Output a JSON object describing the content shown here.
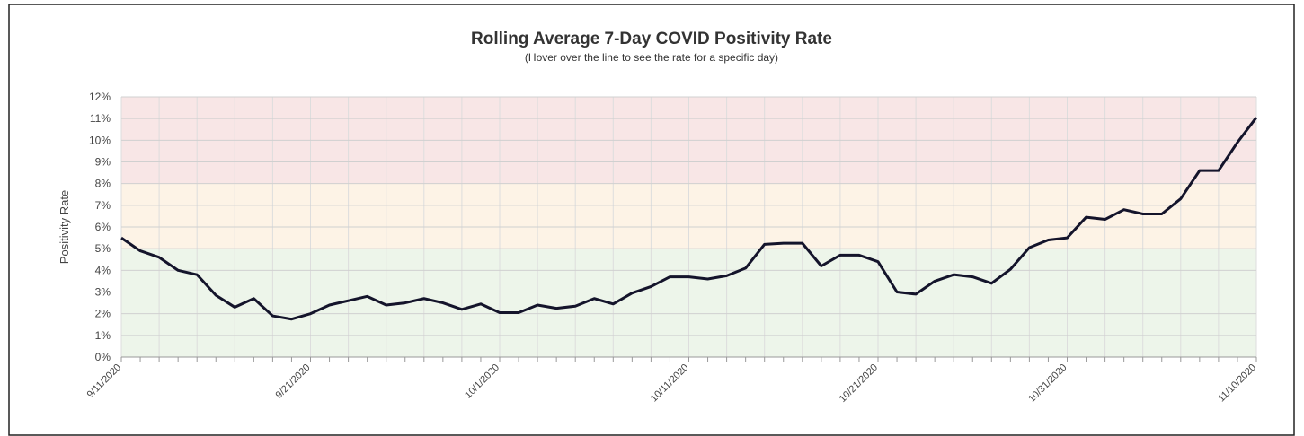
{
  "chart_data": {
    "type": "line",
    "title": "Rolling Average 7-Day COVID Positivity Rate",
    "subtitle": "(Hover over the line to see the rate for a specific day)",
    "y_label": "Positivity Rate",
    "categories": [
      "9/11/2020",
      null,
      null,
      null,
      null,
      null,
      null,
      null,
      null,
      null,
      "9/21/2020",
      null,
      null,
      null,
      null,
      null,
      null,
      null,
      null,
      null,
      "10/1/2020",
      null,
      null,
      null,
      null,
      null,
      null,
      null,
      null,
      null,
      "10/11/2020",
      null,
      null,
      null,
      null,
      null,
      null,
      null,
      null,
      null,
      "10/21/2020",
      null,
      null,
      null,
      null,
      null,
      null,
      null,
      null,
      null,
      "10/31/2020",
      null,
      null,
      null,
      null,
      null,
      null,
      null,
      null,
      null,
      "11/10/2020"
    ],
    "series": [
      {
        "name": "Positivity Rate",
        "color": "#14142b",
        "values": [
          5.5,
          4.9,
          4.6,
          4.0,
          3.8,
          2.85,
          2.3,
          2.7,
          1.9,
          1.75,
          2.0,
          2.4,
          2.6,
          2.8,
          2.4,
          2.5,
          2.7,
          2.5,
          2.2,
          2.45,
          2.05,
          2.05,
          2.4,
          2.25,
          2.35,
          2.7,
          2.45,
          2.95,
          3.25,
          3.7,
          3.7,
          3.6,
          3.75,
          4.1,
          5.2,
          5.25,
          5.25,
          4.2,
          4.7,
          4.7,
          4.4,
          3.0,
          2.9,
          3.5,
          3.8,
          3.7,
          3.4,
          4.05,
          5.05,
          5.4,
          5.5,
          6.45,
          6.35,
          6.8,
          6.6,
          6.6,
          7.3,
          8.6,
          8.6,
          9.9,
          11.05
        ]
      }
    ],
    "ylim": [
      0,
      12
    ],
    "yticks": [
      {
        "value": 0,
        "label": "0%"
      },
      {
        "value": 1,
        "label": "1%"
      },
      {
        "value": 2,
        "label": "2%"
      },
      {
        "value": 3,
        "label": "3%"
      },
      {
        "value": 4,
        "label": "4%"
      },
      {
        "value": 5,
        "label": "5%"
      },
      {
        "value": 6,
        "label": "6%"
      },
      {
        "value": 7,
        "label": "7%"
      },
      {
        "value": 8,
        "label": "8%"
      },
      {
        "value": 9,
        "label": "9%"
      },
      {
        "value": 10,
        "label": "10%"
      },
      {
        "value": 11,
        "label": "11%"
      },
      {
        "value": 12,
        "label": "12%"
      }
    ],
    "bands": [
      {
        "from": 0,
        "to": 5,
        "color": "#edf5ea"
      },
      {
        "from": 5,
        "to": 8,
        "color": "#fdf3e6"
      },
      {
        "from": 8,
        "to": 12,
        "color": "#f8e6e6"
      }
    ],
    "grid": true
  }
}
